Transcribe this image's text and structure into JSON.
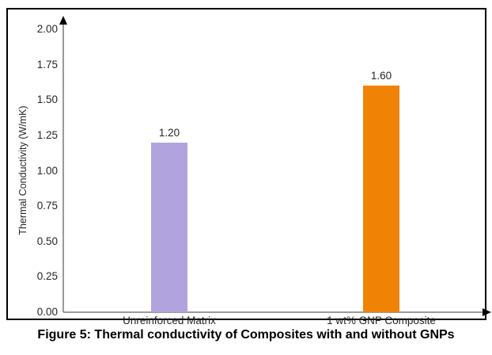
{
  "figure": {
    "caption": "Figure 5: Thermal conductivity of Composites with and without GNPs"
  },
  "chart_data": {
    "type": "bar",
    "title": "",
    "categories": [
      "Unreinforced Matrix",
      "1 wt% GNP Composite"
    ],
    "values": [
      1.2,
      1.6
    ],
    "value_labels": [
      "1.20",
      "1.60"
    ],
    "bar_colors": [
      "#b1a3de",
      "#f08205"
    ],
    "xlabel": "",
    "ylabel": "Thermal Conductivity (W/mK)",
    "ylim": [
      0,
      2
    ],
    "ytick_step": 0.25,
    "ytick_labels": [
      "0.00",
      "0.25",
      "0.50",
      "0.75",
      "1.00",
      "1.25",
      "1.50",
      "1.75",
      "2.00"
    ],
    "grid": false,
    "legend": "none",
    "axis_color": "#9a9a9a",
    "frame_color": "#000000",
    "text_color": "#262626"
  }
}
